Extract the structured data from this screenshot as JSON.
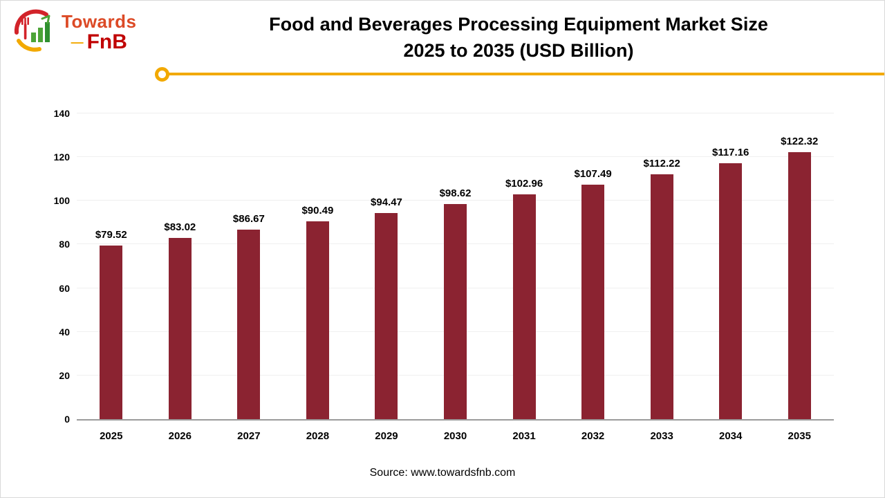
{
  "logo": {
    "brand_top": "Towards",
    "brand_bottom": "FnB",
    "dash": "—"
  },
  "header": {
    "title_line1": "Food and Beverages Processing Equipment Market Size",
    "title_line2": "2025 to 2035 (USD Billion)"
  },
  "footer": {
    "source": "Source: www.towardsfnb.com"
  },
  "colors": {
    "bar": "#8B2331",
    "accent_gold": "#F2A900",
    "brand_red": "#C00000",
    "brand_orange": "#DC4A26"
  },
  "chart_data": {
    "type": "bar",
    "title": "Food and Beverages Processing Equipment Market Size 2025 to 2035 (USD Billion)",
    "categories": [
      "2025",
      "2026",
      "2027",
      "2028",
      "2029",
      "2030",
      "2031",
      "2032",
      "2033",
      "2034",
      "2035"
    ],
    "values": [
      79.52,
      83.02,
      86.67,
      90.49,
      94.47,
      98.62,
      102.96,
      107.49,
      112.22,
      117.16,
      122.32
    ],
    "labels": [
      "$79.52",
      "$83.02",
      "$86.67",
      "$90.49",
      "$94.47",
      "$98.62",
      "$102.96",
      "$107.49",
      "$112.22",
      "$117.16",
      "$122.32"
    ],
    "xlabel": "",
    "ylabel": "",
    "ylim": [
      0,
      140
    ],
    "yticks": [
      0,
      20,
      40,
      60,
      80,
      100,
      120,
      140
    ],
    "grid": "horizontal-light",
    "legend": "none",
    "source": "Source: www.towardsfnb.com"
  }
}
